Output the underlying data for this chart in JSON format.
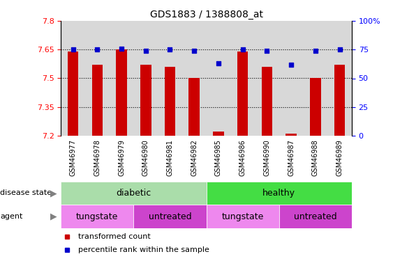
{
  "title": "GDS1883 / 1388808_at",
  "samples": [
    "GSM46977",
    "GSM46978",
    "GSM46979",
    "GSM46980",
    "GSM46981",
    "GSM46982",
    "GSM46985",
    "GSM46986",
    "GSM46990",
    "GSM46987",
    "GSM46988",
    "GSM46989"
  ],
  "transformed_count": [
    7.64,
    7.57,
    7.65,
    7.57,
    7.56,
    7.5,
    7.22,
    7.64,
    7.56,
    7.21,
    7.5,
    7.57
  ],
  "percentile_rank": [
    75,
    75,
    76,
    74,
    75,
    74,
    63,
    75,
    74,
    62,
    74,
    75
  ],
  "bar_color": "#cc0000",
  "dot_color": "#0000cc",
  "ylim_left": [
    7.2,
    7.8
  ],
  "ylim_right": [
    0,
    100
  ],
  "yticks_left": [
    7.2,
    7.35,
    7.5,
    7.65,
    7.8
  ],
  "yticks_right": [
    0,
    25,
    50,
    75,
    100
  ],
  "gridlines": [
    7.35,
    7.5,
    7.65
  ],
  "disease_states": [
    {
      "label": "diabetic",
      "start": 0,
      "end": 6,
      "color": "#aaddaa"
    },
    {
      "label": "healthy",
      "start": 6,
      "end": 12,
      "color": "#44dd44"
    }
  ],
  "agent_groups": [
    {
      "label": "tungstate",
      "start": 0,
      "end": 3,
      "color": "#ee88ee"
    },
    {
      "label": "untreated",
      "start": 3,
      "end": 6,
      "color": "#cc44cc"
    },
    {
      "label": "tungstate",
      "start": 6,
      "end": 9,
      "color": "#ee88ee"
    },
    {
      "label": "untreated",
      "start": 9,
      "end": 12,
      "color": "#cc44cc"
    }
  ],
  "legend_items": [
    {
      "label": "transformed count",
      "color": "#cc0000"
    },
    {
      "label": "percentile rank within the sample",
      "color": "#0000cc"
    }
  ],
  "background_color": "#ffffff",
  "plot_bg_color": "#d8d8d8",
  "xtick_bg_color": "#c8c8c8"
}
